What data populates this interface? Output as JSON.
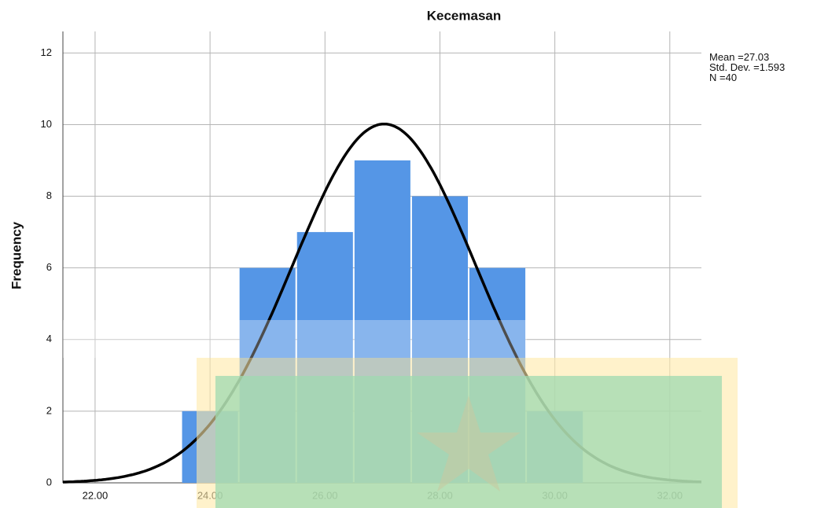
{
  "chart_data": {
    "type": "histogram",
    "title": "Kecemasan",
    "y_label": "Frequency",
    "bins": [
      23.5,
      24.5,
      25.5,
      26.5,
      27.5,
      28.5,
      29.5,
      30.5
    ],
    "values": [
      2,
      6,
      7,
      9,
      8,
      6,
      2
    ],
    "color": "#5596e6",
    "xlim": [
      21.44,
      32.55
    ],
    "xticks": [
      {
        "value": 22,
        "label": "22.00"
      },
      {
        "value": 24,
        "label": "24.00"
      },
      {
        "value": 26,
        "label": "26.00"
      },
      {
        "value": 28,
        "label": "28.00"
      },
      {
        "value": 30,
        "label": "30.00"
      },
      {
        "value": 32,
        "label": "32.00"
      }
    ],
    "ylim": [
      0,
      12.6
    ],
    "yticks": [
      0,
      2,
      4,
      6,
      8,
      10,
      12
    ],
    "grid": true,
    "mean_label": "Mean =",
    "mean": 27.03,
    "std_dev_label": "Std. Dev. =",
    "std_dev": 1.593,
    "n_label": "N =",
    "n": 40
  }
}
